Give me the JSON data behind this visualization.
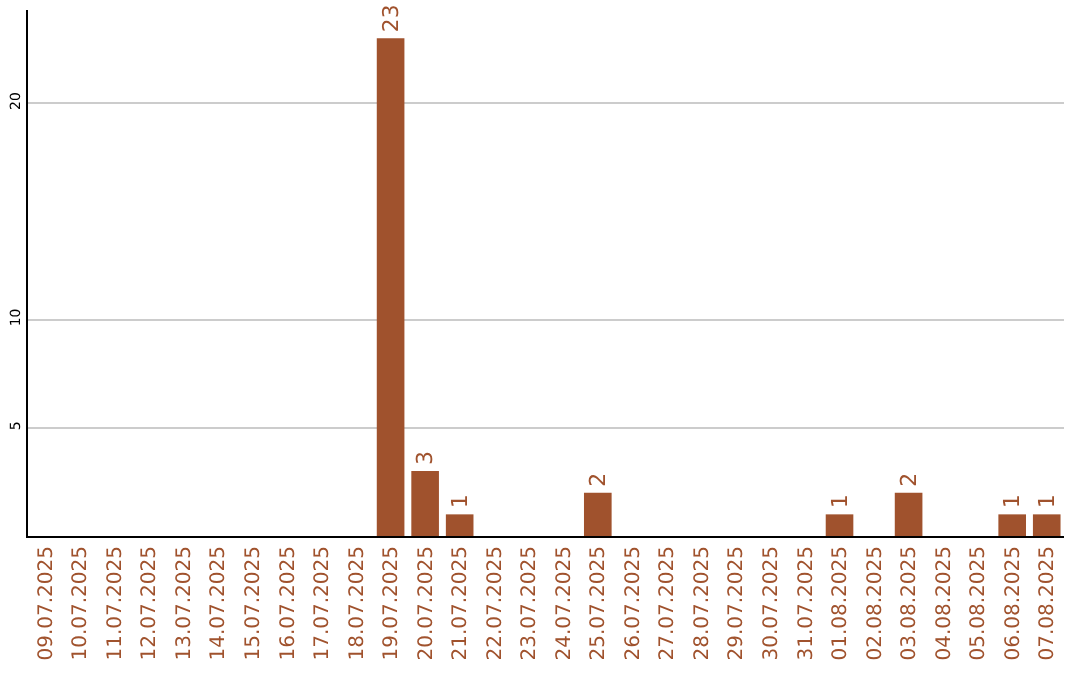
{
  "chart_data": {
    "type": "bar",
    "categories": [
      "09.07.2025",
      "10.07.2025",
      "11.07.2025",
      "12.07.2025",
      "13.07.2025",
      "14.07.2025",
      "15.07.2025",
      "16.07.2025",
      "17.07.2025",
      "18.07.2025",
      "19.07.2025",
      "20.07.2025",
      "21.07.2025",
      "22.07.2025",
      "23.07.2025",
      "24.07.2025",
      "25.07.2025",
      "26.07.2025",
      "27.07.2025",
      "28.07.2025",
      "29.07.2025",
      "30.07.2025",
      "31.07.2025",
      "01.08.2025",
      "02.08.2025",
      "03.08.2025",
      "04.08.2025",
      "05.08.2025",
      "06.08.2025",
      "07.08.2025"
    ],
    "values": [
      0,
      0,
      0,
      0,
      0,
      0,
      0,
      0,
      0,
      0,
      23,
      3,
      1,
      0,
      0,
      0,
      2,
      0,
      0,
      0,
      0,
      0,
      0,
      1,
      0,
      2,
      0,
      0,
      1,
      1
    ],
    "value_labels": [
      null,
      null,
      null,
      null,
      null,
      null,
      null,
      null,
      null,
      null,
      "23",
      "3",
      "1",
      null,
      null,
      null,
      "2",
      null,
      null,
      null,
      null,
      null,
      null,
      "1",
      null,
      "2",
      null,
      null,
      "1",
      "1"
    ],
    "color": "#a0522d",
    "ylim": [
      0,
      24.3
    ],
    "yticks": [
      5,
      10,
      20
    ],
    "grid": "y",
    "legend": false
  }
}
